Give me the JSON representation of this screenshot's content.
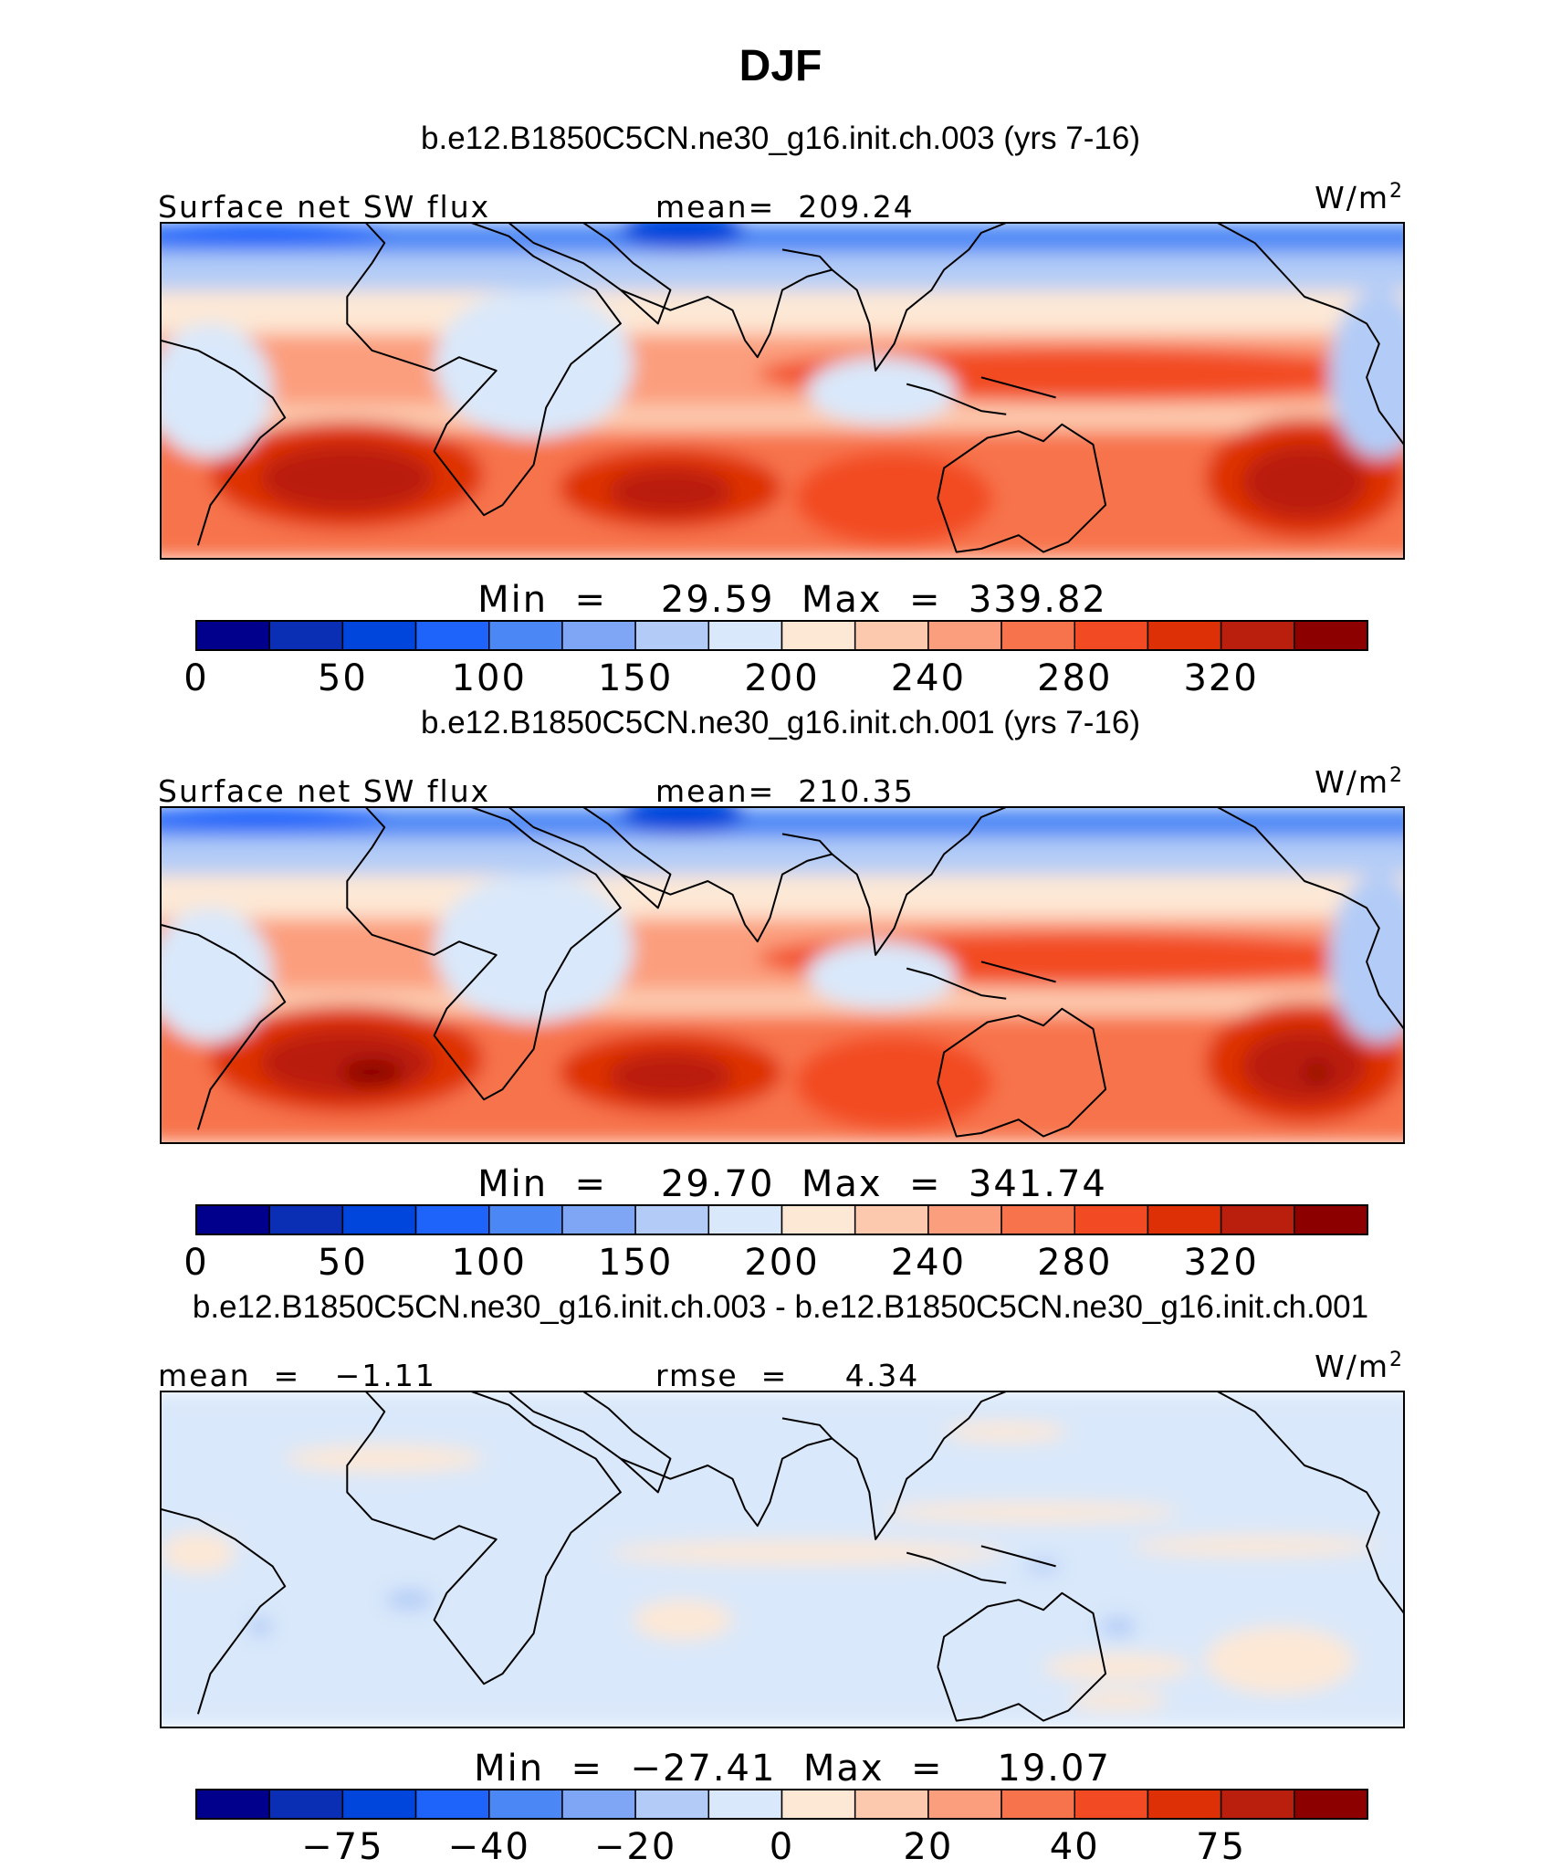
{
  "title": "DJF",
  "colors": {
    "abs_scale": [
      "#00008c",
      "#0a2fb4",
      "#0046dc",
      "#1e64fa",
      "#4b87f5",
      "#7ea6f5",
      "#b2ccf7",
      "#d9e8fa",
      "#fde8d5",
      "#fdc9ae",
      "#fb9e7d",
      "#f7734c",
      "#f24b23",
      "#de3006",
      "#b91f0c",
      "#8c0000"
    ],
    "diff_scale": [
      "#00008c",
      "#0a2fb4",
      "#0046dc",
      "#1e64fa",
      "#4b87f5",
      "#7ea6f5",
      "#b2ccf7",
      "#d9e8fa",
      "#fde8d5",
      "#fdc9ae",
      "#fb9e7d",
      "#f7734c",
      "#f24b23",
      "#de3006",
      "#b91f0c",
      "#8c0000"
    ],
    "coast": "#000000"
  },
  "chart_data": [
    {
      "type": "heatmap",
      "title": "b.e12.B1850C5CN.ne30_g16.init.ch.003 (yrs 7-16)",
      "variable": "Surface net SW flux",
      "stat_left": "",
      "stat_center": "mean=  209.24",
      "units": "W/m",
      "units_sup": "2",
      "minmax": "Min  =    29.59  Max  =  339.82",
      "mean": 209.24,
      "min": 29.59,
      "max": 339.82,
      "colorbar_labels": [
        "0",
        "50",
        "100",
        "150",
        "200",
        "240",
        "280",
        "320"
      ],
      "colorbar_label_positions": [
        0,
        2,
        4,
        6,
        8,
        10,
        12,
        14
      ],
      "field": "abs"
    },
    {
      "type": "heatmap",
      "title": "b.e12.B1850C5CN.ne30_g16.init.ch.001 (yrs 7-16)",
      "variable": "Surface net SW flux",
      "stat_left": "",
      "stat_center": "mean=  210.35",
      "units": "W/m",
      "units_sup": "2",
      "minmax": "Min  =    29.70  Max  =  341.74",
      "mean": 210.35,
      "min": 29.7,
      "max": 341.74,
      "colorbar_labels": [
        "0",
        "50",
        "100",
        "150",
        "200",
        "240",
        "280",
        "320"
      ],
      "colorbar_label_positions": [
        0,
        2,
        4,
        6,
        8,
        10,
        12,
        14
      ],
      "field": "abs2"
    },
    {
      "type": "heatmap",
      "title": "b.e12.B1850C5CN.ne30_g16.init.ch.003 - b.e12.B1850C5CN.ne30_g16.init.ch.001",
      "variable": "",
      "stat_left": "mean  =   −1.11",
      "stat_center": "rmse  =     4.34",
      "units": "W/m",
      "units_sup": "2",
      "minmax": "Min  =  −27.41  Max  =    19.07",
      "mean": -1.11,
      "rmse": 4.34,
      "min": -27.41,
      "max": 19.07,
      "colorbar_labels": [
        "−75",
        "−40",
        "−20",
        "0",
        "20",
        "40",
        "75"
      ],
      "colorbar_label_positions": [
        2,
        4,
        6,
        8,
        10,
        12,
        14
      ],
      "field": "diff"
    }
  ]
}
